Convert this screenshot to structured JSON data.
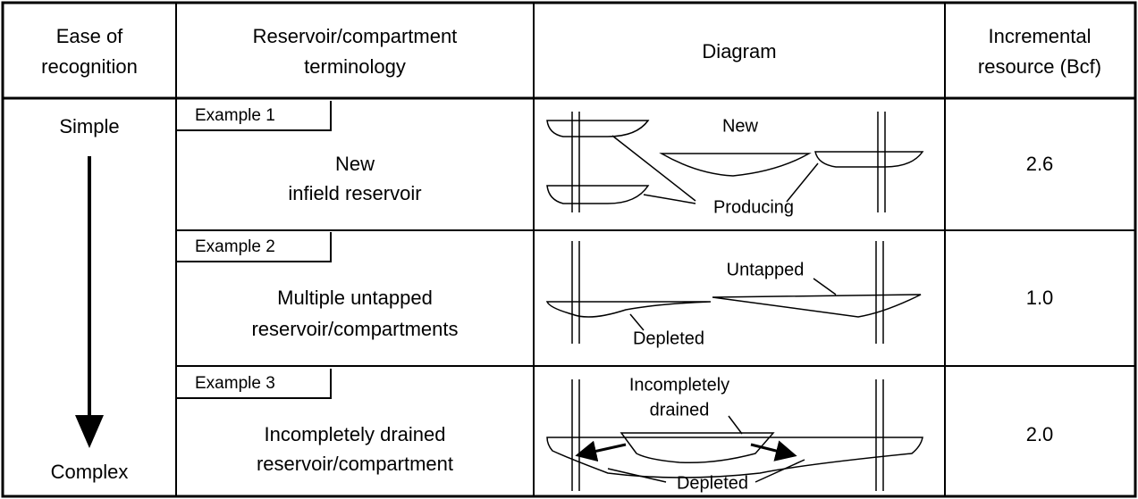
{
  "table": {
    "headers": [
      [
        "Ease of",
        "recognition"
      ],
      [
        "Reservoir/compartment",
        "terminology"
      ],
      [
        "Diagram"
      ],
      [
        "Incremental",
        "resource (Bcf)"
      ]
    ],
    "ease": {
      "top": "Simple",
      "bottom": "Complex"
    },
    "rows": [
      {
        "example": "Example 1",
        "terminology": [
          "New",
          "infield reservoir"
        ],
        "diagram_labels": [
          "New",
          "Producing"
        ],
        "resource": "2.6"
      },
      {
        "example": "Example 2",
        "terminology": [
          "Multiple untapped",
          "reservoir/compartments"
        ],
        "diagram_labels": [
          "Untapped",
          "Depleted"
        ],
        "resource": "1.0"
      },
      {
        "example": "Example 3",
        "terminology": [
          "Incompletely drained",
          "reservoir/compartment"
        ],
        "diagram_labels": [
          "Incompletely",
          "drained",
          "Depleted"
        ],
        "resource": "2.0"
      }
    ]
  }
}
